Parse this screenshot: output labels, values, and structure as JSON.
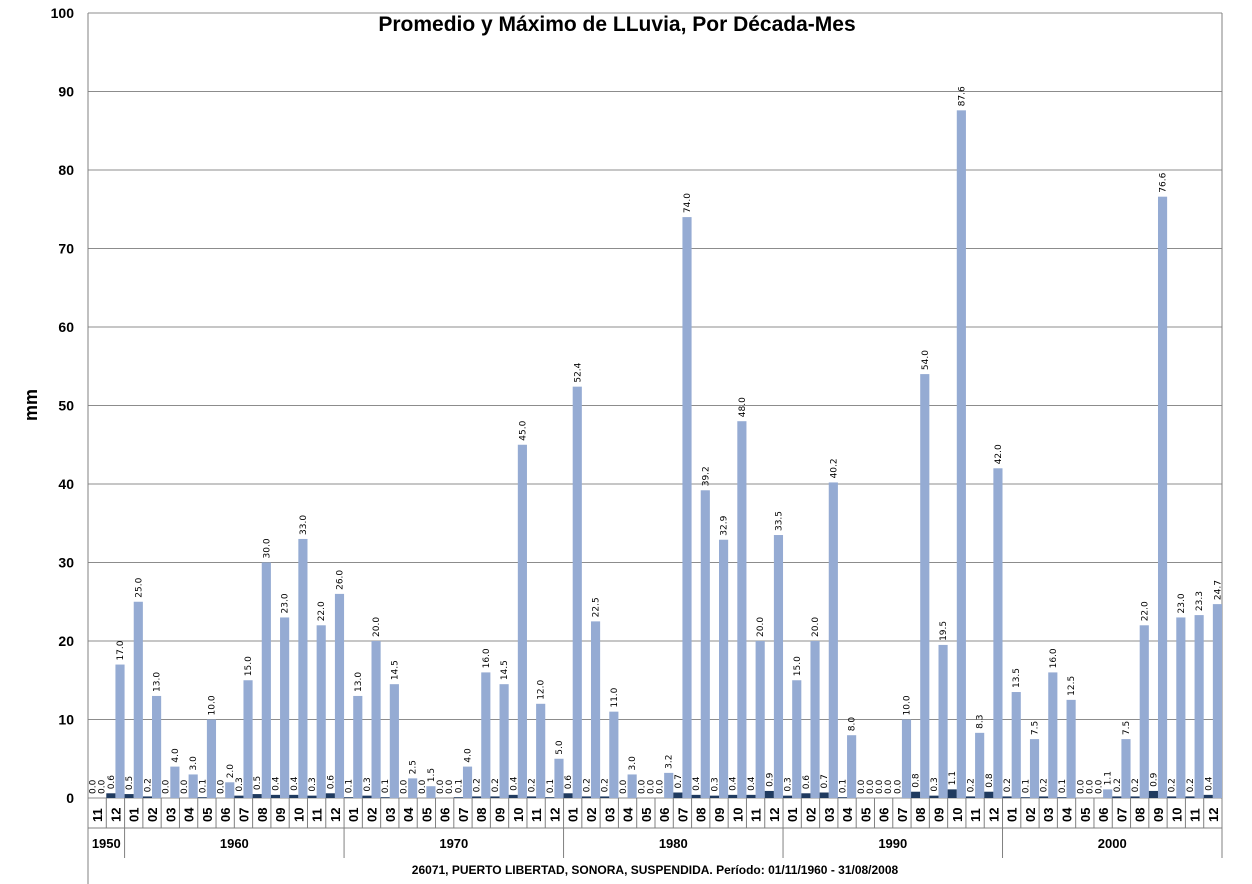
{
  "chart_data": {
    "type": "bar",
    "title": "Promedio y Máximo de LLuvia, Por Década-Mes",
    "ylabel": "mm",
    "xlabel": "",
    "ylim": [
      0,
      100
    ],
    "yticks": [
      0,
      10,
      20,
      30,
      40,
      50,
      60,
      70,
      80,
      90,
      100
    ],
    "grid": true,
    "categories": [
      "11",
      "12",
      "01",
      "02",
      "03",
      "04",
      "05",
      "06",
      "07",
      "08",
      "09",
      "10",
      "11",
      "12",
      "01",
      "02",
      "03",
      "04",
      "05",
      "06",
      "07",
      "08",
      "09",
      "10",
      "11",
      "12",
      "01",
      "02",
      "03",
      "04",
      "05",
      "06",
      "07",
      "08",
      "09",
      "10",
      "11",
      "12",
      "01",
      "02",
      "03",
      "04",
      "05",
      "06",
      "07",
      "08",
      "09",
      "10",
      "11",
      "12",
      "01",
      "02",
      "03",
      "04",
      "05",
      "06",
      "07",
      "08",
      "09",
      "10",
      "11",
      "12"
    ],
    "decades": [
      {
        "label": "1950",
        "count": 2
      },
      {
        "label": "1960",
        "count": 12
      },
      {
        "label": "1970",
        "count": 12
      },
      {
        "label": "1980",
        "count": 12
      },
      {
        "label": "1990",
        "count": 12
      },
      {
        "label": "2000",
        "count": 12
      }
    ],
    "series": [
      {
        "color": "#1f3a5f",
        "values": [
          0.0,
          0.6,
          0.5,
          0.2,
          0.0,
          0.0,
          0.1,
          0.0,
          0.3,
          0.5,
          0.4,
          0.4,
          0.3,
          0.6,
          0.1,
          0.3,
          0.1,
          0.0,
          0.0,
          0.0,
          0.1,
          0.2,
          0.2,
          0.4,
          0.2,
          0.1,
          0.6,
          0.2,
          0.2,
          0.0,
          0.0,
          0.0,
          0.7,
          0.4,
          0.3,
          0.4,
          0.4,
          0.9,
          0.3,
          0.6,
          0.7,
          0.1,
          0.0,
          0.0,
          0.0,
          0.8,
          0.3,
          1.1,
          0.2,
          0.8,
          0.2,
          0.1,
          0.2,
          0.1,
          0.0,
          0.0,
          0.2,
          0.2,
          0.9,
          0.2,
          0.2,
          0.4
        ]
      },
      {
        "color": "#95abd3",
        "values": [
          0.0,
          17.0,
          25.0,
          13.0,
          4.0,
          3.0,
          10.0,
          2.0,
          15.0,
          30.0,
          23.0,
          33.0,
          22.0,
          26.0,
          13.0,
          20.0,
          14.5,
          2.5,
          1.5,
          0.0,
          4.0,
          16.0,
          14.5,
          45.0,
          12.0,
          5.0,
          52.4,
          22.5,
          11.0,
          3.0,
          0.0,
          3.2,
          74.0,
          39.2,
          32.9,
          48.0,
          20.0,
          33.5,
          15.0,
          20.0,
          40.2,
          8.0,
          0.0,
          0.0,
          10.0,
          54.0,
          19.5,
          87.6,
          8.3,
          42.0,
          13.5,
          7.5,
          16.0,
          12.5,
          0.0,
          1.1,
          7.5,
          22.0,
          76.6,
          23.0,
          23.3,
          24.7
        ]
      }
    ],
    "footer": "26071, PUERTO LIBERTAD, SONORA, SUSPENDIDA. Período: 01/11/1960 - 31/08/2008"
  }
}
